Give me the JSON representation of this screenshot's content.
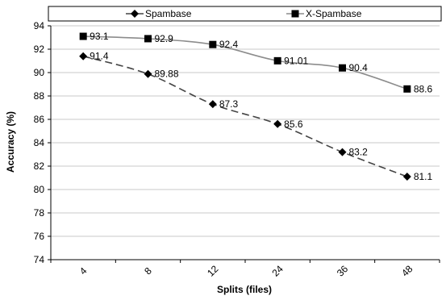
{
  "chart_data": {
    "type": "line",
    "categories": [
      "4",
      "8",
      "12",
      "24",
      "36",
      "48"
    ],
    "series": [
      {
        "name": "Spambase",
        "values": [
          91.4,
          89.88,
          87.3,
          85.6,
          83.2,
          81.1
        ],
        "color": "#444444",
        "line_style": "dashed",
        "marker": "diamond",
        "labels": [
          "91.4",
          "89.88",
          "87.3",
          "85.6",
          "83.2",
          "81.1"
        ]
      },
      {
        "name": "X-Spambase",
        "values": [
          93.1,
          92.9,
          92.4,
          91.01,
          90.4,
          88.6
        ],
        "color": "#8c8c8c",
        "line_style": "solid",
        "marker": "square",
        "labels": [
          "93.1",
          "92.9",
          "92.4",
          "91.01",
          "90.4",
          "88.6"
        ]
      }
    ],
    "xlabel": "Splits (files)",
    "ylabel": "Accuracy (%)",
    "ylim": [
      74,
      94
    ],
    "yticks": [
      "74",
      "76",
      "78",
      "80",
      "82",
      "84",
      "86",
      "88",
      "90",
      "92",
      "94"
    ],
    "grid": true,
    "legend_position": "top"
  }
}
